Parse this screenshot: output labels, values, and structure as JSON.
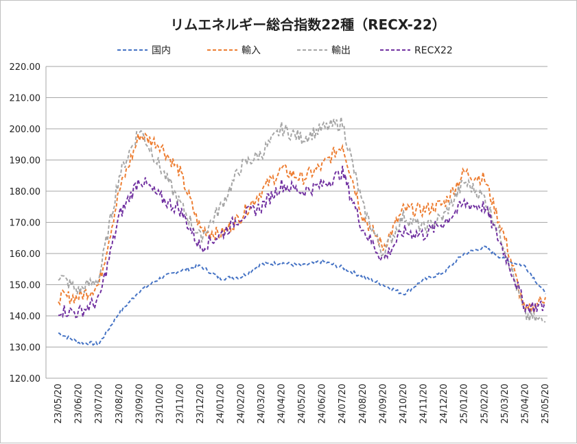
{
  "chart_data": {
    "type": "line",
    "title": "リムエネルギー総合指数22種（RECX-22）",
    "xlabel": "",
    "ylabel": "",
    "ylim": [
      120,
      220
    ],
    "yticks": [
      "120.00",
      "130.00",
      "140.00",
      "150.00",
      "160.00",
      "170.00",
      "180.00",
      "190.00",
      "200.00",
      "210.00",
      "220.00"
    ],
    "x": [
      "23/05/20",
      "23/06/20",
      "23/07/20",
      "23/08/20",
      "23/09/20",
      "23/10/20",
      "23/11/20",
      "23/12/20",
      "24/01/20",
      "24/02/20",
      "24/03/20",
      "24/04/20",
      "24/05/20",
      "24/06/20",
      "24/07/20",
      "24/08/20",
      "24/09/20",
      "24/10/20",
      "24/11/20",
      "24/12/20",
      "25/01/20",
      "25/02/20",
      "25/03/20",
      "25/04/20",
      "25/05/20"
    ],
    "grid": true,
    "legend_position": "top",
    "series": [
      {
        "name": "国内",
        "color": "#4472c4",
        "values": [
          134.5,
          131.5,
          131.0,
          141.0,
          148.0,
          152.0,
          154.5,
          156.0,
          152.0,
          152.5,
          156.5,
          157.0,
          156.0,
          157.5,
          155.5,
          152.5,
          150.0,
          147.0,
          151.5,
          154.0,
          160.0,
          162.0,
          158.0,
          156.0,
          147.0
        ]
      },
      {
        "name": "輸入",
        "color": "#ed7d31",
        "values": [
          146.0,
          146.0,
          150.0,
          180.0,
          198.0,
          195.0,
          186.0,
          168.0,
          166.0,
          172.0,
          180.0,
          187.0,
          184.0,
          188.0,
          195.0,
          172.0,
          162.0,
          174.0,
          174.0,
          176.0,
          186.0,
          184.0,
          165.0,
          141.0,
          146.0
        ]
      },
      {
        "name": "輸出",
        "color": "#a5a5a5",
        "values": [
          153.0,
          148.0,
          152.0,
          185.0,
          200.0,
          188.0,
          176.0,
          165.0,
          175.0,
          188.0,
          192.0,
          200.0,
          197.0,
          200.0,
          202.0,
          175.0,
          160.0,
          172.0,
          168.0,
          172.0,
          183.0,
          178.0,
          162.0,
          140.0,
          138.0
        ]
      },
      {
        "name": "RECX22",
        "color": "#7030a0",
        "values": [
          142.0,
          141.0,
          145.0,
          172.0,
          184.0,
          178.0,
          174.0,
          162.0,
          166.0,
          172.0,
          175.0,
          182.0,
          180.0,
          182.0,
          186.0,
          168.0,
          158.0,
          167.0,
          166.0,
          170.0,
          176.0,
          175.0,
          160.0,
          143.0,
          143.0
        ]
      }
    ]
  }
}
